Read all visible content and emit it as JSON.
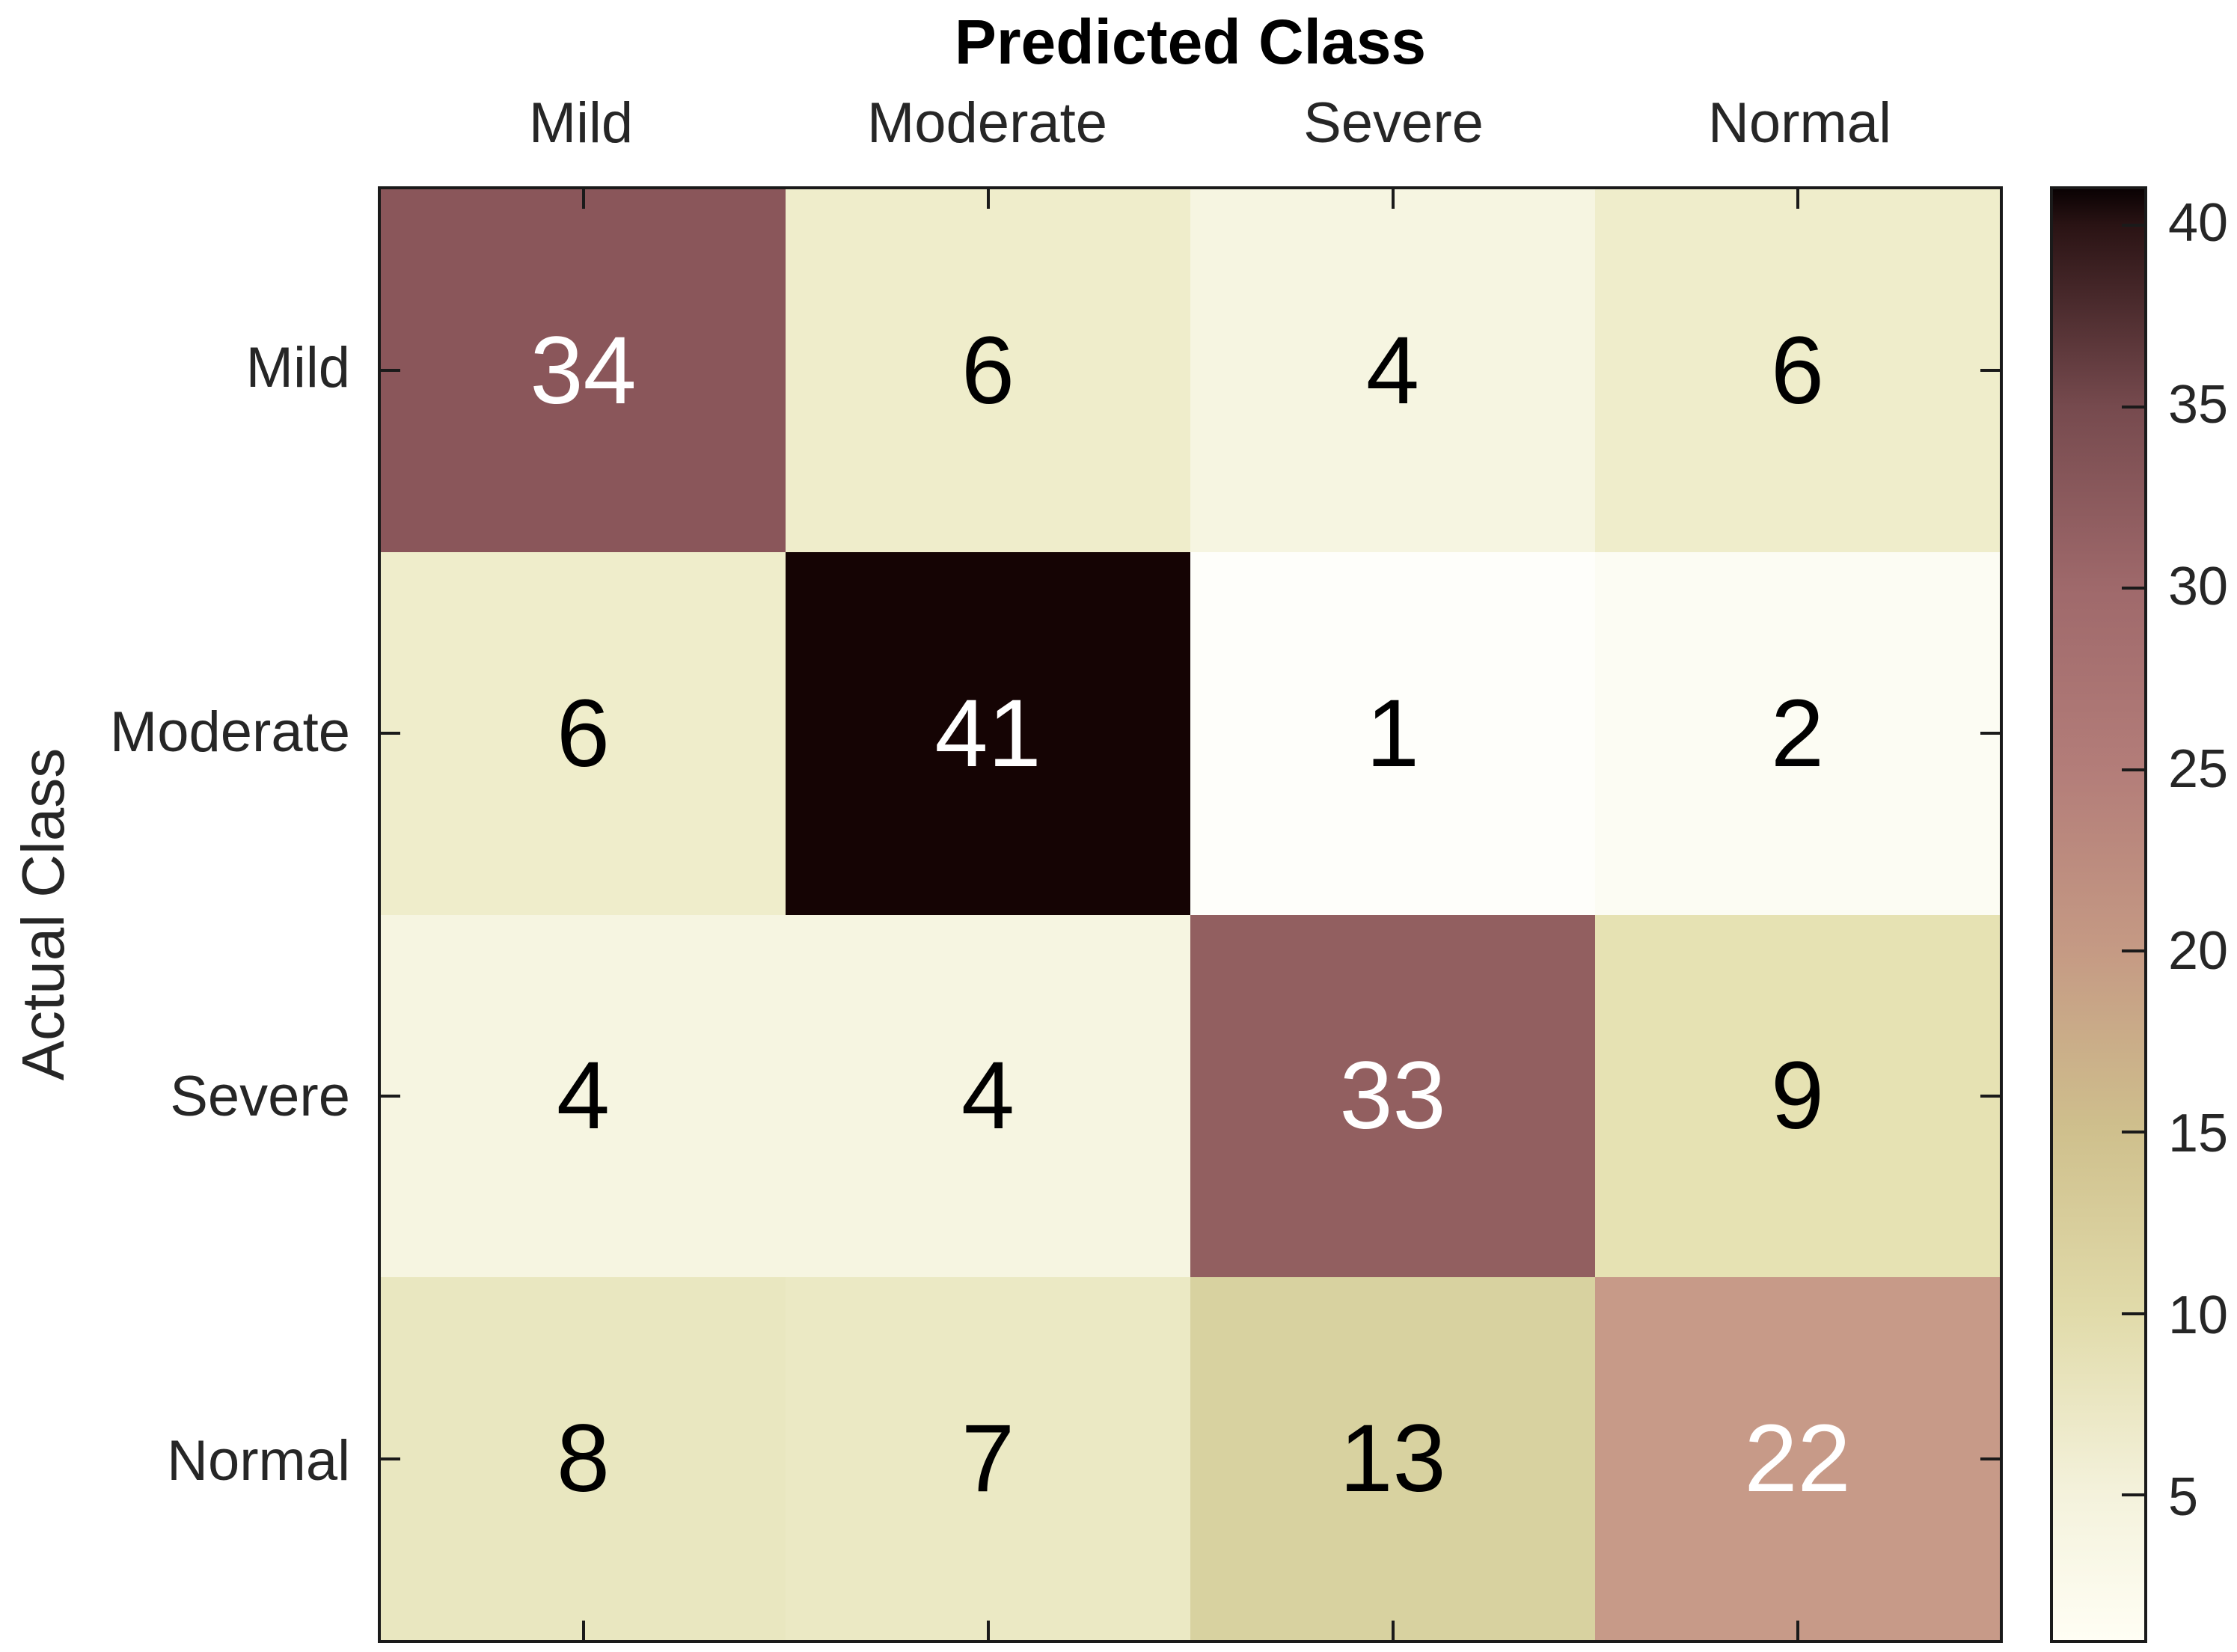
{
  "chart_data": {
    "type": "heatmap",
    "title": "Predicted Class",
    "xlabel": "Predicted Class",
    "ylabel": "Actual Class",
    "x_categories": [
      "Mild",
      "Moderate",
      "Severe",
      "Normal"
    ],
    "y_categories": [
      "Mild",
      "Moderate",
      "Severe",
      "Normal"
    ],
    "matrix": [
      [
        34,
        6,
        4,
        6
      ],
      [
        6,
        41,
        1,
        2
      ],
      [
        4,
        4,
        33,
        9
      ],
      [
        8,
        7,
        13,
        22
      ]
    ],
    "color_axis_min": 1,
    "color_axis_max": 41,
    "colormap": "pink-reversed",
    "colorbar_ticks": [
      40,
      35,
      30,
      25,
      20,
      15,
      10,
      5
    ],
    "legend_position": "colorbar-right",
    "grid": false
  },
  "style": {
    "background": "#ffffff",
    "border_color": "#1a1a1a",
    "label_text_color": "#262626",
    "title_color": "#000000",
    "cell_text_dark": "#000000",
    "cell_text_light": "#ffffff",
    "white_text_threshold": 21,
    "value_colors": {
      "1": "#fefefa",
      "2": "#fcfcf3",
      "4": "#f6f5e1",
      "6": "#efedcb",
      "7": "#ebe9c4",
      "8": "#e9e7c0",
      "9": "#e6e2b3",
      "13": "#d8d2a0",
      "22": "#c79a88",
      "33": "#925f60",
      "34": "#8a565a",
      "41": "#150404"
    },
    "colorbar_stops": [
      {
        "value": 41,
        "color": "#0a0203"
      },
      {
        "value": 40,
        "color": "#2a1314"
      },
      {
        "value": 35,
        "color": "#764a4e"
      },
      {
        "value": 30,
        "color": "#9f696b"
      },
      {
        "value": 25,
        "color": "#b37d79"
      },
      {
        "value": 20,
        "color": "#c59a84"
      },
      {
        "value": 15,
        "color": "#cfc08d"
      },
      {
        "value": 10,
        "color": "#e1dbaa"
      },
      {
        "value": 5,
        "color": "#f4f2dc"
      },
      {
        "value": 1,
        "color": "#fffef4"
      }
    ]
  }
}
